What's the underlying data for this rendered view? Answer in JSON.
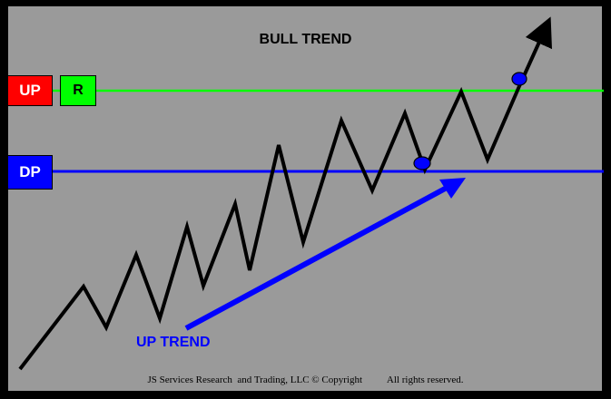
{
  "diagram": {
    "title": "BULL TREND",
    "labels": {
      "up": "UP",
      "r": "R",
      "dp": "DP",
      "up_trend": "UP TREND"
    },
    "footer": "JS Services Research  and Trading, LLC © Copyright          All rights reserved."
  },
  "colors": {
    "panel": "#9a9a9a",
    "up_line": "#00ff00",
    "dp_line": "#0000ff",
    "price_path": "#000000",
    "trend_arrow": "#0000ff",
    "marker": "#0000ff"
  }
}
